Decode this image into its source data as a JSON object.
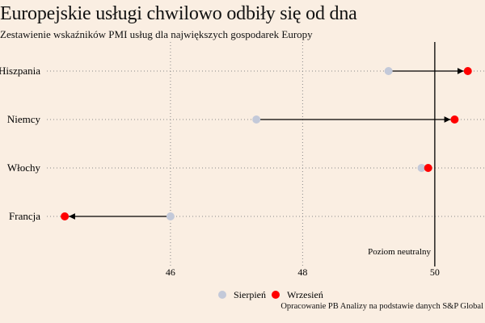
{
  "title": "Europejskie usługi chwilowo odbiły się od dna",
  "subtitle": "Zestawienie wskaźników PMI usług dla największych gospodarek Europy",
  "source": "Opracowanie PB Analizy na podstawie danych S&P Global",
  "chart_data": {
    "type": "dumbbell",
    "title": "Europejskie usługi chwilowo odbiły się od dna",
    "subtitle": "Zestawienie wskaźników PMI usług dla największych gospodarek Europy",
    "categories": [
      "Hiszpania",
      "Niemcy",
      "Włochy",
      "Francja"
    ],
    "series": [
      {
        "name": "Sierpień",
        "color": "#C3C9D9",
        "values": [
          49.3,
          47.3,
          49.8,
          46.0
        ]
      },
      {
        "name": "Wrzesień",
        "color": "#FF0000",
        "values": [
          50.5,
          50.3,
          49.9,
          44.4
        ]
      }
    ],
    "xticks": [
      46,
      48,
      50
    ],
    "xlim": [
      43.42,
      50.76
    ],
    "reference_line": {
      "value": 50,
      "label": "Poziom neutralny"
    },
    "grid": "vertical dotted",
    "legend_position": "bottom"
  }
}
